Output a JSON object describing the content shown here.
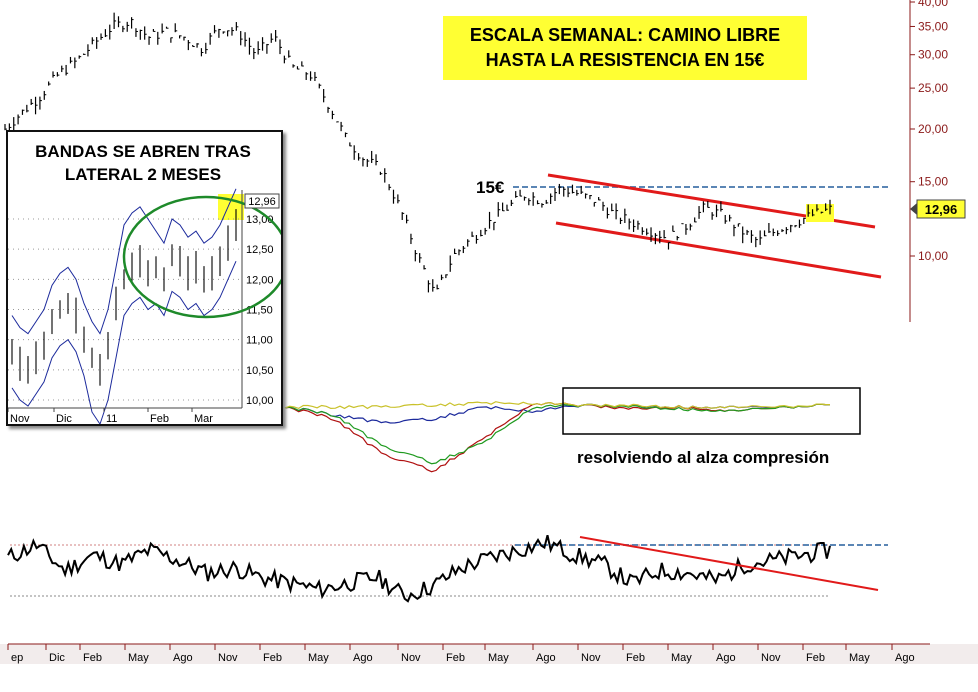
{
  "title_note": {
    "line1": "ESCALA SEMANAL: CAMINO LIBRE",
    "line2": "HASTA LA RESISTENCIA EN 15€"
  },
  "resistance_label": "15€",
  "compression_label": "resolviendo al alza compresión",
  "colors": {
    "price": "#000000",
    "trendline": "#e11a1a",
    "resistance": "#5b86b5",
    "axis": "#8b1a1a",
    "highlight": "#ffff33",
    "bollinger": "#1c2a9c",
    "inset_circle": "#1e8a2a",
    "ind_blue": "#1c2a9c",
    "ind_red": "#b01010",
    "ind_green": "#1f9a1f",
    "ind_yellow": "#c9c12a"
  },
  "inset": {
    "title_line1": "BANDAS SE ABREN TRAS",
    "title_line2": "LATERAL 2 MESES",
    "price_label": "12,96",
    "y_ticks": [
      "13,00",
      "12,50",
      "12,00",
      "11,50",
      "11,00",
      "10,50",
      "10,00"
    ],
    "x_ticks": [
      "Nov",
      "Dic",
      "11",
      "Feb",
      "Mar"
    ]
  },
  "chart_data": [
    {
      "type": "line",
      "title": "",
      "description_scale": "log",
      "y_ticks": [
        "40,00",
        "35,00",
        "30,00",
        "25,00",
        "20,00",
        "15,00",
        "12,96",
        "10,00"
      ],
      "ylim": [
        7,
        40
      ],
      "x_ticks": [
        "ep",
        "Dic",
        "Feb",
        "May",
        "Ago",
        "Nov",
        "Feb",
        "May",
        "Ago",
        "Nov",
        "Feb",
        "May",
        "Ago",
        "Nov",
        "Feb",
        "May",
        "Ago"
      ],
      "last_price": "12,96",
      "series": [
        {
          "values_approx": [
            20,
            22,
            24,
            27,
            29,
            32,
            35,
            36,
            33,
            34,
            33,
            31,
            35,
            34,
            30,
            33,
            28,
            27,
            23,
            19,
            17,
            16,
            13,
            10,
            8,
            10,
            11,
            12,
            13,
            14,
            13.5,
            14.5,
            14,
            13.5,
            12.5,
            12,
            11.5,
            11,
            11.8,
            13,
            12.5,
            11.5,
            10.8,
            11.5,
            12,
            12.5,
            12.9
          ]
        }
      ],
      "annotations": {
        "resistance_level": 15,
        "upper_trendline_points": [
          [
            0,
            15.3
          ],
          [
            1,
            12.7
          ]
        ],
        "lower_trendline_points": [
          [
            0,
            12.5
          ],
          [
            1,
            9.4
          ]
        ]
      }
    },
    {
      "type": "line",
      "title": "",
      "series": [
        {
          "color_key": "ind_blue",
          "values": [
            0.0,
            -0.2,
            -0.4,
            -0.3,
            0.0,
            -0.1,
            0.05,
            0.02,
            0.0,
            0.0,
            0.0,
            0.05
          ]
        },
        {
          "color_key": "ind_red",
          "values": [
            0.0,
            -0.3,
            -1.2,
            -1.6,
            -0.8,
            0.1,
            0.05,
            -0.05,
            0.0,
            -0.1,
            0.0,
            0.05
          ]
        },
        {
          "color_key": "ind_green",
          "values": [
            0.0,
            -0.2,
            -1.0,
            -1.4,
            -0.9,
            0.0,
            0.05,
            0.0,
            -0.05,
            -0.1,
            0.0,
            0.05
          ]
        },
        {
          "color_key": "ind_yellow",
          "values": [
            0.0,
            0.0,
            0.0,
            0.05,
            0.1,
            0.1,
            0.05,
            0.03,
            0.0,
            0.0,
            0.02,
            0.05
          ]
        }
      ]
    },
    {
      "type": "line",
      "title": "",
      "series": [
        {
          "values": [
            60,
            70,
            50,
            62,
            55,
            66,
            58,
            48,
            52,
            44,
            40,
            35,
            40,
            45,
            30,
            38,
            52,
            60,
            66,
            72,
            62,
            55,
            40,
            50,
            48,
            42,
            55,
            58,
            62,
            66
          ]
        }
      ],
      "reference_levels": [
        70,
        30
      ]
    }
  ]
}
